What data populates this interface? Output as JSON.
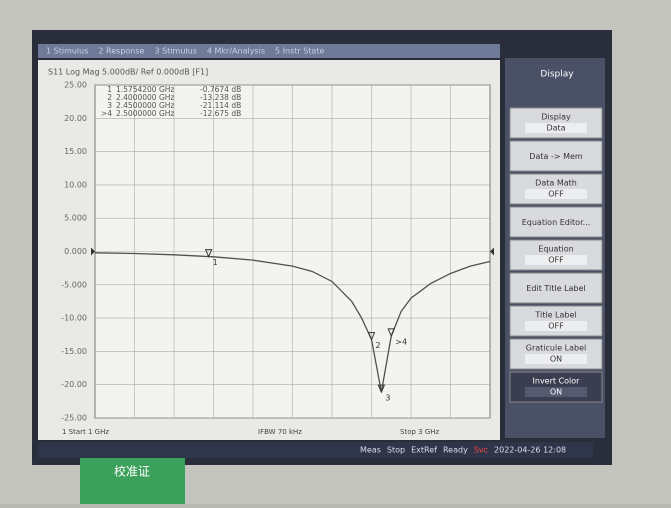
{
  "chart_data": {
    "type": "line",
    "title": "S11 Log Mag 5.000dB/ Ref 0.000dB [F1]",
    "x": [
      1.0,
      1.2,
      1.4,
      1.6,
      1.8,
      2.0,
      2.1,
      2.2,
      2.3,
      2.35,
      2.4,
      2.45,
      2.5,
      2.55,
      2.6,
      2.7,
      2.8,
      2.9,
      3.0
    ],
    "series": [
      {
        "color": "#505050",
        "values": [
          -0.2,
          -0.3,
          -0.5,
          -0.8,
          -1.3,
          -2.2,
          -3.0,
          -4.5,
          -7.5,
          -10,
          -13.2,
          -21.1,
          -12.7,
          -9,
          -7,
          -4.8,
          -3.3,
          -2.2,
          -1.5
        ]
      }
    ],
    "xlim": [
      1,
      3
    ],
    "ylim": [
      -25,
      25
    ],
    "yticks": [
      {
        "value": 25,
        "label": "25.00"
      },
      {
        "value": 20,
        "label": "20.00"
      },
      {
        "value": 15,
        "label": "15.00"
      },
      {
        "value": 10,
        "label": "10.00"
      },
      {
        "value": 5,
        "label": "5.000"
      },
      {
        "value": 0,
        "label": "0.000"
      },
      {
        "value": -5,
        "label": "-5.000"
      },
      {
        "value": -10,
        "label": "-10.00"
      },
      {
        "value": -15,
        "label": "-15.00"
      },
      {
        "value": -20,
        "label": "-20.00"
      },
      {
        "value": -25,
        "label": "-25.00"
      }
    ],
    "grid": true,
    "markers": [
      {
        "name": "1",
        "x": 1.57542,
        "x_label": "1.5754200 GHz",
        "value": -0.7674,
        "value_label": "-0.7674 dB"
      },
      {
        "name": "2",
        "x": 2.4,
        "x_label": "2.4000000 GHz",
        "value": -13.238,
        "value_label": "-13.238 dB"
      },
      {
        "name": "3",
        "x": 2.45,
        "x_label": "2.4500000 GHz",
        "value": -21.114,
        "value_label": "-21.114 dB"
      },
      {
        "name": ">4",
        "x": 2.5,
        "x_label": "2.5000000 GHz",
        "value": -12.675,
        "value_label": "-12.675 dB"
      }
    ],
    "start_label": "1  Start 1 GHz",
    "ifbw_label": "IFBW 70 kHz",
    "stop_label": "Stop 3 GHz"
  },
  "ui": {
    "menu": [
      "1 Stimulus",
      "2 Response",
      "3 Stimulus",
      "4 Mkr/Analysis",
      "5 Instr State"
    ],
    "softkeys_title": "Display",
    "softkeys": [
      [
        "Display",
        "Data"
      ],
      [
        "Data -> Mem"
      ],
      [
        "Data Math",
        "OFF"
      ],
      [
        "Equation Editor..."
      ],
      [
        "Equation",
        "OFF"
      ],
      [
        "Edit Title Label"
      ],
      [
        "Title Label",
        "OFF"
      ],
      [
        "Graticule Label",
        "ON"
      ],
      [
        "Invert Color",
        "ON"
      ]
    ],
    "status": [
      "Meas",
      "Stop",
      "ExtRef",
      "Ready",
      "Svc",
      "2022-04-26 12:08"
    ],
    "sticker": "校准证"
  }
}
